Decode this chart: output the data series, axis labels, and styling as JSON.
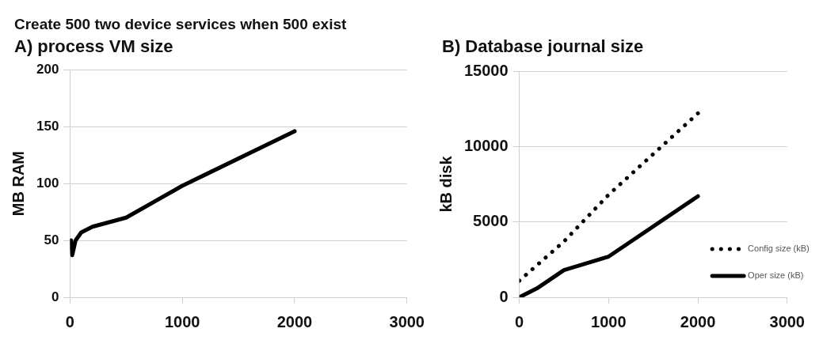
{
  "chart_data": [
    {
      "type": "line",
      "title": "Create 500 two device services when 500 exist",
      "subtitle": "A) process VM size",
      "ylabel": "MB RAM",
      "xlim": [
        0,
        3000
      ],
      "xticks": [
        0,
        1000,
        2000,
        3000
      ],
      "ylim": [
        0,
        200
      ],
      "yticks": [
        0,
        50,
        100,
        150,
        200
      ],
      "grid": "y",
      "series": [
        {
          "color": "#000000",
          "line_style": "solid",
          "x": [
            10,
            20,
            50,
            100,
            200,
            500,
            1000,
            2000
          ],
          "values": [
            50,
            37,
            50,
            57,
            62,
            70,
            98,
            146
          ]
        }
      ]
    },
    {
      "type": "line",
      "title": "B) Database journal size",
      "ylabel": "kB disk",
      "xlim": [
        0,
        3000
      ],
      "xticks": [
        0,
        1000,
        2000,
        3000
      ],
      "ylim": [
        0,
        15000
      ],
      "yticks": [
        0,
        5000,
        10000,
        15000
      ],
      "grid": "y",
      "legend": "bottom right",
      "series": [
        {
          "name": "Config size (kB)",
          "color": "#000000",
          "line_style": "dotted",
          "x": [
            0,
            500,
            1000,
            2000
          ],
          "values": [
            1100,
            3700,
            6800,
            12200
          ]
        },
        {
          "name": "Oper size (kB)",
          "color": "#000000",
          "line_style": "solid",
          "x": [
            0,
            100,
            200,
            500,
            1000,
            2000
          ],
          "values": [
            0,
            300,
            600,
            1800,
            2700,
            6700
          ]
        }
      ]
    }
  ]
}
